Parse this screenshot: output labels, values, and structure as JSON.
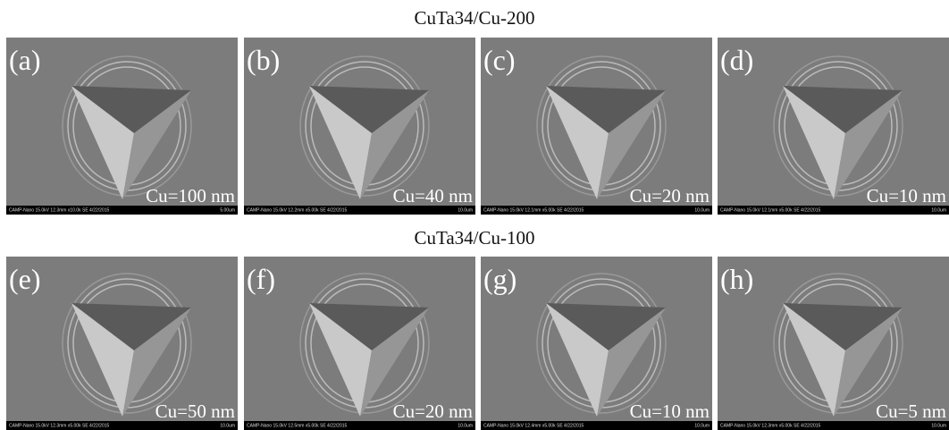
{
  "rows": [
    {
      "title": "CuTa34/Cu-200",
      "panels": [
        {
          "label": "(a)",
          "caption": "Cu=100 nm",
          "info": "CAMP-Nano 15.0kV 12.3mm x10.0k SE 4/22/2015",
          "scale": "5.00um"
        },
        {
          "label": "(b)",
          "caption": "Cu=40 nm",
          "info": "CAMP-Nano 15.0kV 12.2mm x5.00k SE 4/22/2015",
          "scale": "10.0um"
        },
        {
          "label": "(c)",
          "caption": "Cu=20 nm",
          "info": "CAMP-Nano 15.0kV 12.1mm x5.00k SE 4/22/2015",
          "scale": "10.0um"
        },
        {
          "label": "(d)",
          "caption": "Cu=10 nm",
          "info": "CAMP-Nano 15.0kV 12.1mm x5.00k SE 4/22/2015",
          "scale": "10.0um"
        }
      ]
    },
    {
      "title": "CuTa34/Cu-100",
      "panels": [
        {
          "label": "(e)",
          "caption": "Cu=50 nm",
          "info": "CAMP-Nano 15.0kV 12.3mm x5.00k SE 4/22/2015",
          "scale": "10.0um"
        },
        {
          "label": "(f)",
          "caption": "Cu=20 nm",
          "info": "CAMP-Nano 15.0kV 12.5mm x5.00k SE 4/22/2015",
          "scale": "10.0um"
        },
        {
          "label": "(g)",
          "caption": "Cu=10 nm",
          "info": "CAMP-Nano 15.0kV 12.4mm x5.00k SE 4/22/2015",
          "scale": "10.0um"
        },
        {
          "label": "(h)",
          "caption": "Cu=5 nm",
          "info": "CAMP-Nano 15.0kV 12.3mm x5.00k SE 4/22/2015",
          "scale": "10.0um"
        }
      ]
    }
  ]
}
